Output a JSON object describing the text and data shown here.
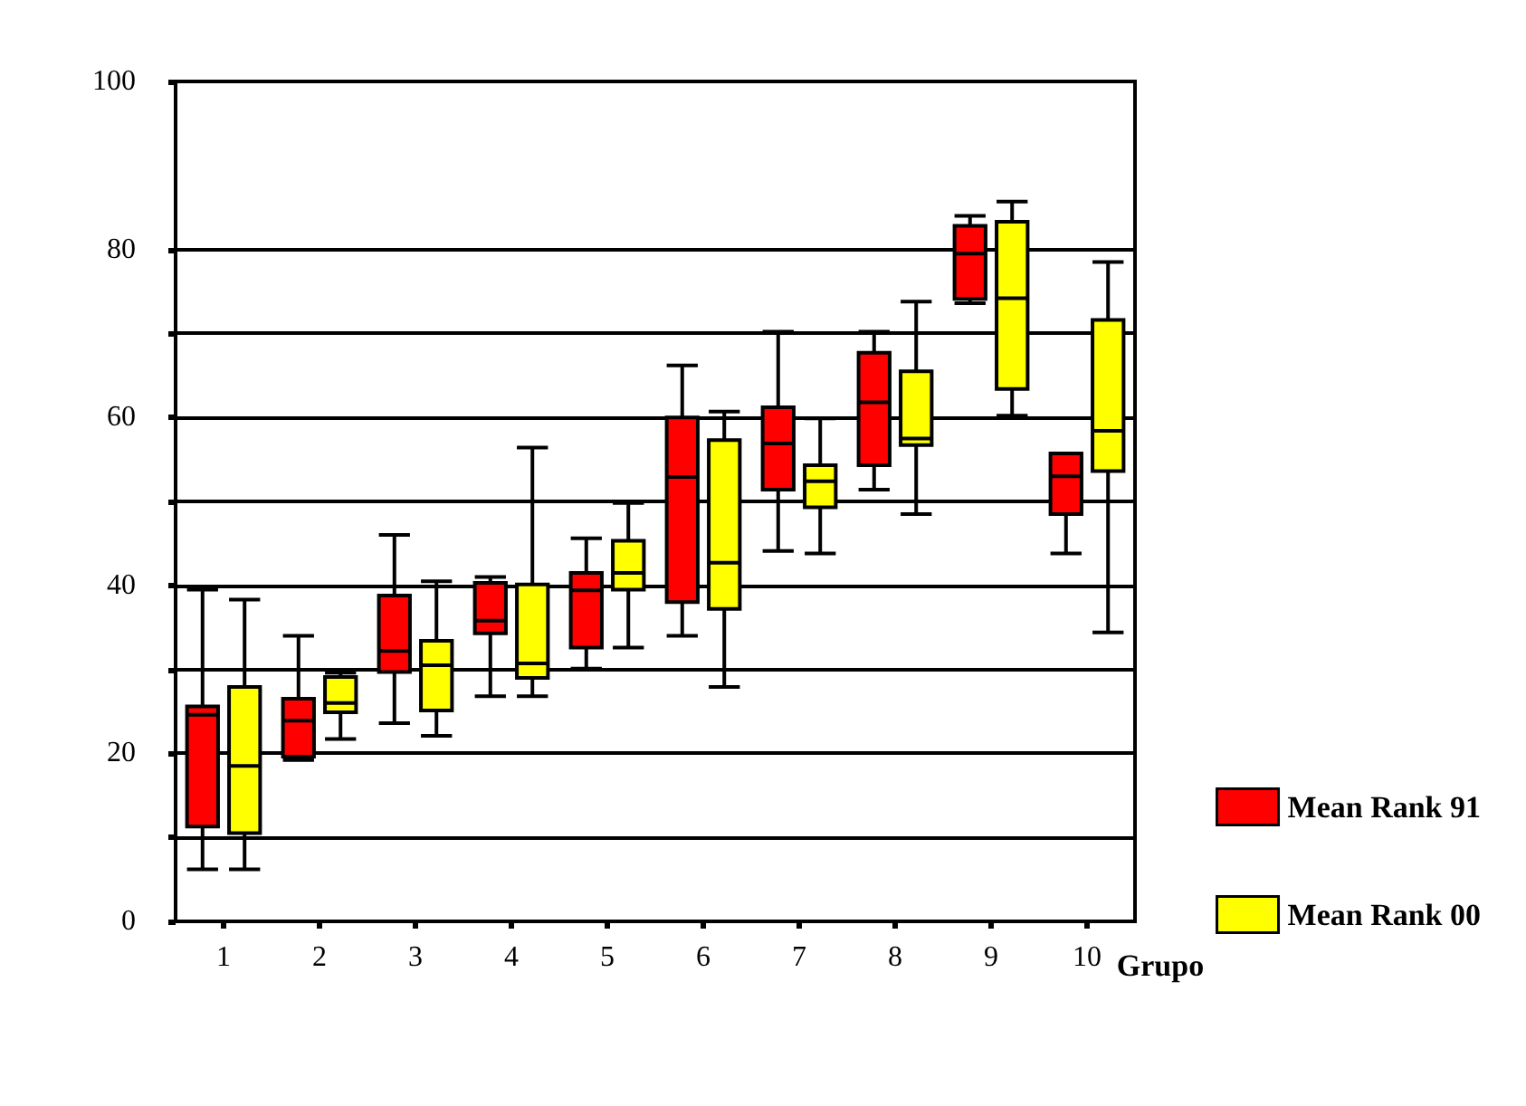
{
  "chart_data": {
    "type": "box",
    "xlabel": "Grupo",
    "categories": [
      "1",
      "2",
      "3",
      "4",
      "5",
      "6",
      "7",
      "8",
      "9",
      "10"
    ],
    "series": [
      {
        "name": "Mean Rank 91",
        "color": "#ff0000",
        "boxes": [
          {
            "low": 6.2,
            "q1": 11.3,
            "median": 24.6,
            "q3": 25.6,
            "high": 39.5
          },
          {
            "low": 19.2,
            "q1": 19.6,
            "median": 23.9,
            "q3": 26.5,
            "high": 34.0
          },
          {
            "low": 23.6,
            "q1": 29.7,
            "median": 32.2,
            "q3": 38.8,
            "high": 46.0
          },
          {
            "low": 26.8,
            "q1": 34.3,
            "median": 35.8,
            "q3": 40.3,
            "high": 41.0
          },
          {
            "low": 30.1,
            "q1": 32.6,
            "median": 39.4,
            "q3": 41.5,
            "high": 45.6
          },
          {
            "low": 34.0,
            "q1": 38.0,
            "median": 52.9,
            "q3": 60.0,
            "high": 66.2
          },
          {
            "low": 44.1,
            "q1": 51.4,
            "median": 56.9,
            "q3": 61.2,
            "high": 70.2
          },
          {
            "low": 51.4,
            "q1": 54.3,
            "median": 61.8,
            "q3": 67.7,
            "high": 70.2
          },
          {
            "low": 73.6,
            "q1": 74.1,
            "median": 79.5,
            "q3": 82.8,
            "high": 84.0
          },
          {
            "low": 43.8,
            "q1": 48.5,
            "median": 53.0,
            "q3": 55.7,
            "high": 55.7
          }
        ]
      },
      {
        "name": "Mean Rank 00",
        "color": "#ffff00",
        "boxes": [
          {
            "low": 6.2,
            "q1": 10.5,
            "median": 18.5,
            "q3": 27.9,
            "high": 38.3
          },
          {
            "low": 21.7,
            "q1": 24.9,
            "median": 26.0,
            "q3": 29.1,
            "high": 29.6
          },
          {
            "low": 22.1,
            "q1": 25.1,
            "median": 30.5,
            "q3": 33.4,
            "high": 40.5
          },
          {
            "low": 26.8,
            "q1": 29.0,
            "median": 30.7,
            "q3": 40.1,
            "high": 56.4
          },
          {
            "low": 32.6,
            "q1": 39.5,
            "median": 41.5,
            "q3": 45.3,
            "high": 49.8
          },
          {
            "low": 27.9,
            "q1": 37.2,
            "median": 42.7,
            "q3": 57.3,
            "high": 60.7
          },
          {
            "low": 43.8,
            "q1": 49.3,
            "median": 52.4,
            "q3": 54.3,
            "high": 59.9
          },
          {
            "low": 48.5,
            "q1": 56.7,
            "median": 57.5,
            "q3": 65.5,
            "high": 73.8
          },
          {
            "low": 60.2,
            "q1": 63.4,
            "median": 74.2,
            "q3": 83.3,
            "high": 85.7
          },
          {
            "low": 34.4,
            "q1": 53.6,
            "median": 58.4,
            "q3": 71.6,
            "high": 78.5
          }
        ]
      }
    ],
    "ylim": [
      0,
      100
    ],
    "yticks": [
      0,
      {
        "value": 10,
        "label": null
      },
      20,
      {
        "value": 30,
        "label": null
      },
      40,
      {
        "value": 50,
        "label": null
      },
      60,
      {
        "value": 70,
        "label": null
      },
      80,
      100
    ],
    "grid": "y",
    "legend": "right"
  }
}
